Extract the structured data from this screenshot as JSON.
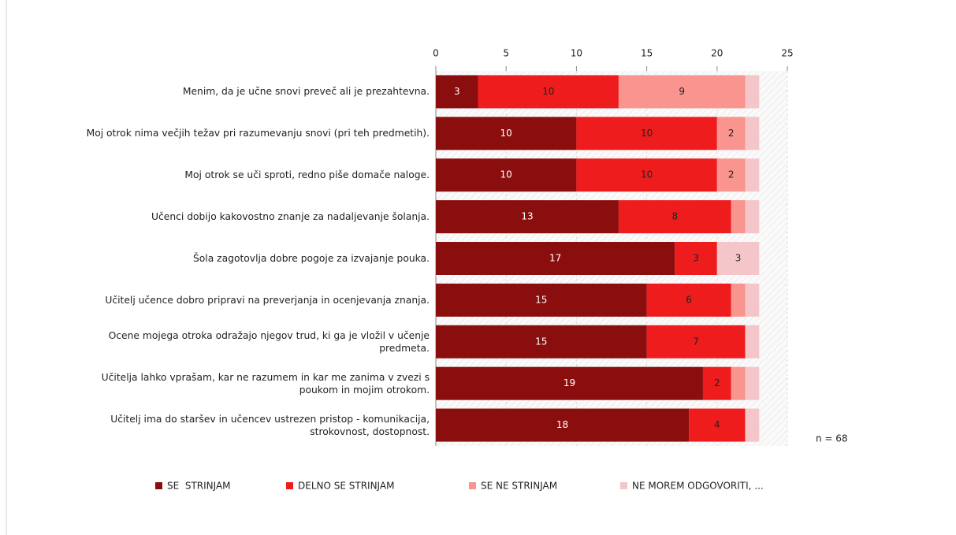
{
  "chart_data": {
    "type": "stacked-bar-horizontal",
    "categories": [
      "Menim, da je učne snovi preveč ali je prezahtevna.",
      "Moj otrok nima večjih težav pri razumevanju snovi (pri teh predmetih).",
      "Moj otrok se uči sproti, redno piše domače naloge.",
      "Učenci dobijo kakovostno znanje za nadaljevanje šolanja.",
      "Šola zagotovlja dobre pogoje za izvajanje pouka.",
      "Učitelj učence dobro pripravi na preverjanja in ocenjevanja znanja.",
      "Ocene mojega otroka odražajo njegov trud, ki ga je vložil v učenje predmeta.",
      "Učitelja lahko vprašam, kar ne razumem in kar me zanima v zvezi s poukom in mojim otrokom.",
      "Učitelj ima do staršev in učencev ustrezen pristop - komunikacija, strokovnost, dostopnost."
    ],
    "series": [
      {
        "name": "SE  STRINJAM",
        "color": "#8b0e0e",
        "values": [
          3,
          10,
          10,
          13,
          17,
          15,
          15,
          19,
          18
        ]
      },
      {
        "name": "DELNO SE STRINJAM",
        "color": "#ee1c1c",
        "values": [
          10,
          10,
          10,
          8,
          3,
          6,
          7,
          2,
          4
        ]
      },
      {
        "name": "SE NE STRINJAM",
        "color": "#f9948e",
        "values": [
          9,
          2,
          2,
          1,
          0,
          1,
          0,
          1,
          0
        ]
      },
      {
        "name": "NE MOREM ODGOVORITI, ...",
        "color": "#f4c6c9",
        "values": [
          1,
          1,
          1,
          1,
          3,
          1,
          1,
          1,
          1
        ]
      }
    ],
    "xlim": [
      0,
      25
    ],
    "xticks": [
      0,
      5,
      10,
      15,
      20,
      25
    ],
    "annotation": "n = 68"
  }
}
